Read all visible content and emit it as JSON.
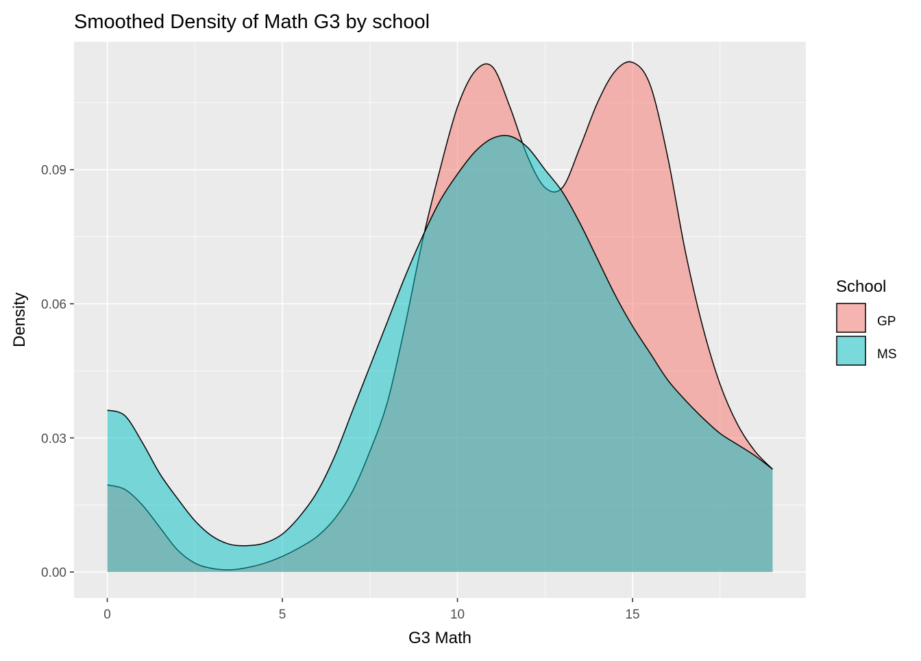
{
  "chart_data": {
    "type": "area",
    "title": "Smoothed Density of Math G3 by school",
    "xlabel": "G3 Math",
    "ylabel": "Density",
    "xlim": [
      -0.95,
      19.95
    ],
    "ylim": [
      -0.0058,
      0.1186
    ],
    "x_ticks": [
      0,
      5,
      10,
      15
    ],
    "x_tick_labels": [
      "0",
      "5",
      "10",
      "15"
    ],
    "y_ticks": [
      0.0,
      0.03,
      0.06,
      0.09
    ],
    "y_tick_labels": [
      "0.00",
      "0.03",
      "0.06",
      "0.09"
    ],
    "grid": true,
    "legend": {
      "title": "School",
      "position": "right",
      "entries": [
        "GP",
        "MS"
      ]
    },
    "colors": {
      "panel_bg": "#EBEBEB",
      "grid": "#FFFFFF",
      "GP": "#F8766D",
      "MS": "#00BFC4",
      "outline": "#000000"
    },
    "fill_opacity": 0.5,
    "series": [
      {
        "name": "GP",
        "x": [
          0,
          0.5,
          1,
          1.5,
          2,
          2.5,
          3,
          3.5,
          4,
          4.5,
          5,
          5.5,
          6,
          6.5,
          7,
          7.5,
          8,
          8.5,
          9,
          9.5,
          10,
          10.5,
          11,
          11.5,
          12,
          12.5,
          13,
          13.5,
          14,
          14.5,
          15,
          15.5,
          16,
          16.5,
          17,
          17.5,
          18,
          18.5,
          19
        ],
        "y": [
          0.0195,
          0.0185,
          0.015,
          0.01,
          0.005,
          0.002,
          0.0008,
          0.0005,
          0.001,
          0.002,
          0.0035,
          0.0055,
          0.008,
          0.012,
          0.018,
          0.027,
          0.038,
          0.055,
          0.074,
          0.09,
          0.104,
          0.112,
          0.113,
          0.104,
          0.093,
          0.086,
          0.086,
          0.095,
          0.105,
          0.112,
          0.114,
          0.109,
          0.093,
          0.072,
          0.055,
          0.042,
          0.033,
          0.027,
          0.023
        ]
      },
      {
        "name": "MS",
        "x": [
          0,
          0.5,
          1,
          1.5,
          2,
          2.5,
          3,
          3.5,
          4,
          4.5,
          5,
          5.5,
          6,
          6.5,
          7,
          7.5,
          8,
          8.5,
          9,
          9.5,
          10,
          10.5,
          11,
          11.5,
          12,
          12.5,
          13,
          13.5,
          14,
          14.5,
          15,
          15.5,
          16,
          16.5,
          17,
          17.5,
          18,
          18.5,
          19
        ],
        "y": [
          0.0362,
          0.035,
          0.029,
          0.022,
          0.0165,
          0.0115,
          0.008,
          0.0062,
          0.0059,
          0.0065,
          0.0085,
          0.0125,
          0.018,
          0.026,
          0.036,
          0.046,
          0.056,
          0.066,
          0.075,
          0.083,
          0.089,
          0.094,
          0.097,
          0.0975,
          0.095,
          0.09,
          0.085,
          0.078,
          0.07,
          0.062,
          0.055,
          0.049,
          0.043,
          0.0385,
          0.0345,
          0.031,
          0.0285,
          0.026,
          0.023
        ]
      }
    ]
  }
}
